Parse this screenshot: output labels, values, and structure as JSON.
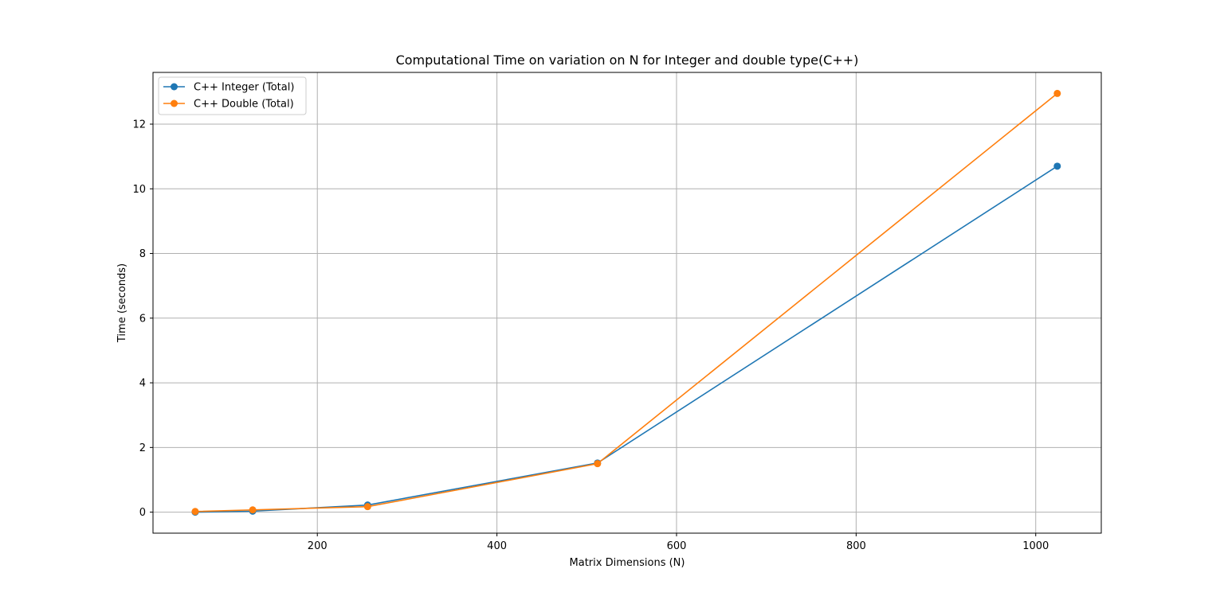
{
  "chart_data": {
    "type": "line",
    "title": "Computational Time on variation on N for Integer and double type(C++)",
    "xlabel": "Matrix Dimensions (N)",
    "ylabel": "Time (seconds)",
    "xlim": [
      17,
      1073
    ],
    "ylim": [
      -0.65,
      13.6
    ],
    "xticks": [
      200,
      400,
      600,
      800,
      1000
    ],
    "yticks": [
      0,
      2,
      4,
      6,
      8,
      10,
      12
    ],
    "grid": true,
    "legend_position": "top-left",
    "series": [
      {
        "name": "C++ Integer (Total)",
        "color": "#1f77b4",
        "marker": "circle",
        "x": [
          64,
          128,
          256,
          512,
          1024
        ],
        "y": [
          0.0,
          0.03,
          0.22,
          1.52,
          10.7
        ]
      },
      {
        "name": "C++ Double (Total)",
        "color": "#ff7f0e",
        "marker": "circle",
        "x": [
          64,
          128,
          256,
          512,
          1024
        ],
        "y": [
          0.02,
          0.07,
          0.17,
          1.5,
          12.95
        ]
      }
    ]
  }
}
